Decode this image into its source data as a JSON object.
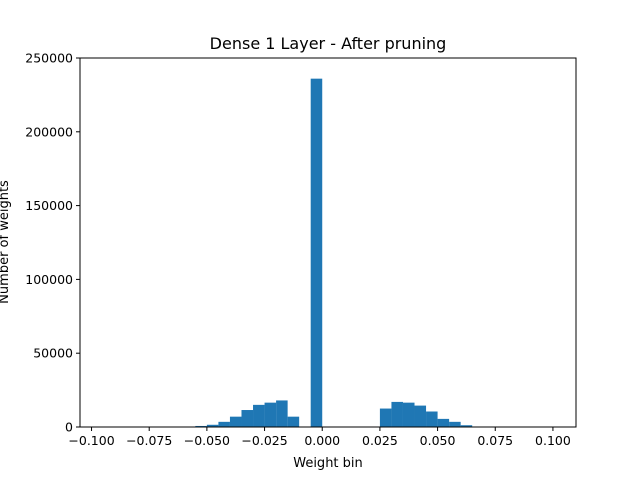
{
  "chart_data": {
    "type": "bar",
    "title": "Dense 1 Layer - After pruning",
    "xlabel": "Weight bin",
    "ylabel": "Number of weights",
    "xlim": [
      -0.105,
      0.11
    ],
    "ylim": [
      0,
      250000
    ],
    "bin_width": 0.005,
    "color": "#1f77b4",
    "x_ticks": [
      -0.1,
      -0.075,
      -0.05,
      -0.025,
      0.0,
      0.025,
      0.05,
      0.075,
      0.1
    ],
    "x_tick_labels": [
      "−0.100",
      "−0.075",
      "−0.050",
      "−0.025",
      "0.000",
      "0.025",
      "0.050",
      "0.075",
      "0.100"
    ],
    "y_ticks": [
      0,
      50000,
      100000,
      150000,
      200000,
      250000
    ],
    "y_tick_labels": [
      "0",
      "50000",
      "100000",
      "150000",
      "200000",
      "250000"
    ],
    "bars": [
      {
        "x": -0.06,
        "value": 100
      },
      {
        "x": -0.055,
        "value": 700
      },
      {
        "x": -0.05,
        "value": 1500
      },
      {
        "x": -0.045,
        "value": 3500
      },
      {
        "x": -0.04,
        "value": 7000
      },
      {
        "x": -0.035,
        "value": 11500
      },
      {
        "x": -0.03,
        "value": 15000
      },
      {
        "x": -0.025,
        "value": 16500
      },
      {
        "x": -0.02,
        "value": 18000
      },
      {
        "x": -0.015,
        "value": 7000
      },
      {
        "x": -0.005,
        "value": 236000
      },
      {
        "x": 0.025,
        "value": 12500
      },
      {
        "x": 0.03,
        "value": 17000
      },
      {
        "x": 0.035,
        "value": 16500
      },
      {
        "x": 0.04,
        "value": 14500
      },
      {
        "x": 0.045,
        "value": 10500
      },
      {
        "x": 0.05,
        "value": 5500
      },
      {
        "x": 0.055,
        "value": 3500
      },
      {
        "x": 0.06,
        "value": 1200
      },
      {
        "x": 0.065,
        "value": 200
      }
    ]
  }
}
